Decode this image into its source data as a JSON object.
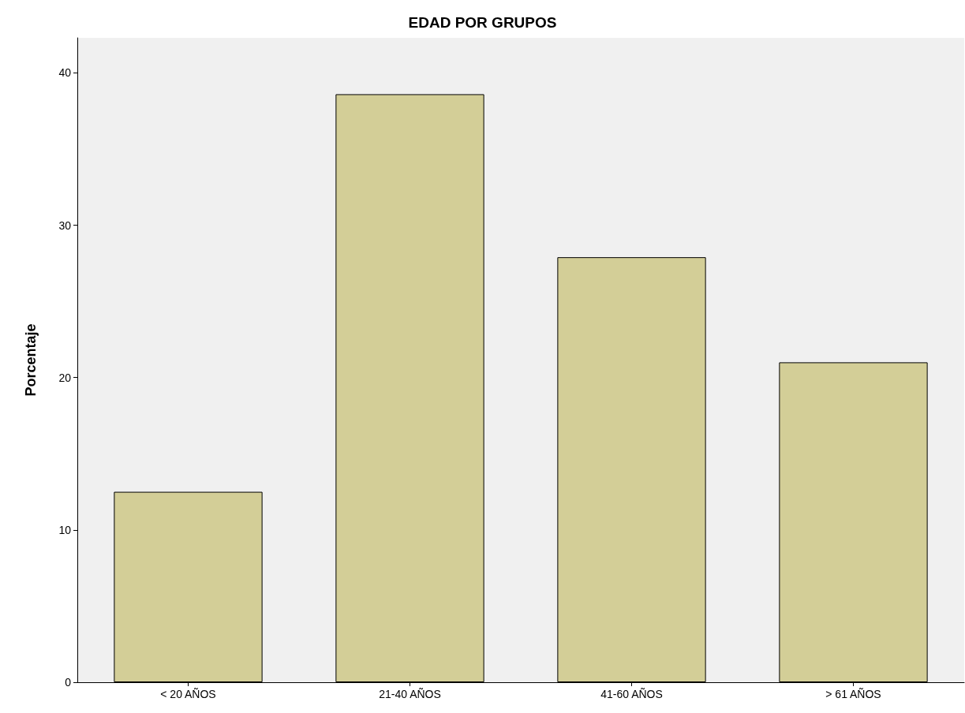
{
  "chart_data": {
    "type": "bar",
    "title": "EDAD POR GRUPOS",
    "ylabel": "Porcentaje",
    "categories": [
      "< 20 AÑOS",
      "21-40 AÑOS",
      "41-60 AÑOS",
      "> 61 AÑOS"
    ],
    "values": [
      12.5,
      38.6,
      27.9,
      21.0
    ],
    "color": "#d3ce97",
    "ylim": [
      0,
      42.3
    ],
    "yticks": [
      0,
      10,
      20,
      30,
      40
    ],
    "grid": false
  }
}
